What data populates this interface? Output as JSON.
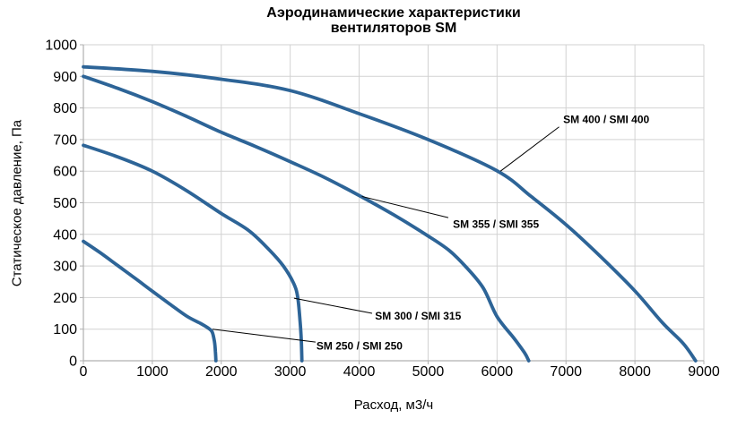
{
  "title": {
    "line1": "Аэродинамические характеристики",
    "line2": "вентиляторов SM"
  },
  "chart_data": {
    "type": "line",
    "title": "Аэродинамические характеристики вентиляторов SM",
    "xlabel": "Расход, м3/ч",
    "ylabel": "Статическое давление, Па",
    "xlim": [
      0,
      9000
    ],
    "ylim": [
      0,
      1000
    ],
    "x_ticks": [
      0,
      1000,
      2000,
      3000,
      4000,
      5000,
      6000,
      7000,
      8000,
      9000
    ],
    "y_ticks": [
      0,
      100,
      200,
      300,
      400,
      500,
      600,
      700,
      800,
      900,
      1000
    ],
    "grid": true,
    "legend_position": "none",
    "colors": {
      "series": "#2d6497",
      "grid": "#d2d2d2",
      "axis": "#b0b0b0",
      "text": "#000000",
      "annotation_line": "#000000"
    },
    "series": [
      {
        "name": "SM 250 / SMI 250",
        "points": [
          [
            0,
            378
          ],
          [
            250,
            341
          ],
          [
            500,
            301
          ],
          [
            750,
            261
          ],
          [
            1000,
            220
          ],
          [
            1250,
            180
          ],
          [
            1500,
            141
          ],
          [
            1700,
            118
          ],
          [
            1820,
            102
          ],
          [
            1870,
            90
          ],
          [
            1900,
            62
          ],
          [
            1915,
            30
          ],
          [
            1922,
            0
          ]
        ]
      },
      {
        "name": "SM 300 / SMI 315",
        "points": [
          [
            0,
            682
          ],
          [
            500,
            645
          ],
          [
            1000,
            600
          ],
          [
            1500,
            538
          ],
          [
            2000,
            466
          ],
          [
            2400,
            412
          ],
          [
            2700,
            350
          ],
          [
            2900,
            300
          ],
          [
            3050,
            245
          ],
          [
            3110,
            200
          ],
          [
            3145,
            120
          ],
          [
            3162,
            60
          ],
          [
            3170,
            0
          ]
        ]
      },
      {
        "name": "SM 355 / SMI 355",
        "points": [
          [
            0,
            900
          ],
          [
            500,
            862
          ],
          [
            1000,
            820
          ],
          [
            1500,
            773
          ],
          [
            2000,
            723
          ],
          [
            2500,
            678
          ],
          [
            3000,
            630
          ],
          [
            3500,
            580
          ],
          [
            4000,
            523
          ],
          [
            4500,
            462
          ],
          [
            5000,
            395
          ],
          [
            5300,
            350
          ],
          [
            5550,
            297
          ],
          [
            5800,
            230
          ],
          [
            6000,
            140
          ],
          [
            6250,
            70
          ],
          [
            6400,
            25
          ],
          [
            6460,
            0
          ]
        ]
      },
      {
        "name": "SM 400 / SMI 400",
        "points": [
          [
            0,
            930
          ],
          [
            1000,
            916
          ],
          [
            2000,
            891
          ],
          [
            3000,
            855
          ],
          [
            4000,
            782
          ],
          [
            5000,
            700
          ],
          [
            6000,
            601
          ],
          [
            6500,
            519
          ],
          [
            7000,
            431
          ],
          [
            7500,
            330
          ],
          [
            8000,
            221
          ],
          [
            8400,
            120
          ],
          [
            8700,
            55
          ],
          [
            8880,
            0
          ]
        ]
      }
    ],
    "annotations": [
      {
        "label": "SM 250 / SMI 250",
        "attach": [
          1872,
          100
        ],
        "elbow": [
          3368,
          59
        ],
        "text": [
          3380,
          48
        ]
      },
      {
        "label": "SM 300 / SMI 315",
        "attach": [
          3055,
          198
        ],
        "elbow": [
          4188,
          150
        ],
        "text": [
          4230,
          143
        ]
      },
      {
        "label": "SM 355 / SMI 355",
        "attach": [
          4040,
          520
        ],
        "elbow": [
          5293,
          453
        ],
        "text": [
          5360,
          433
        ]
      },
      {
        "label": "SM 400 / SMI 400",
        "attach": [
          6050,
          600
        ],
        "elbow": [
          6900,
          740
        ],
        "text": [
          6960,
          765
        ]
      }
    ]
  }
}
